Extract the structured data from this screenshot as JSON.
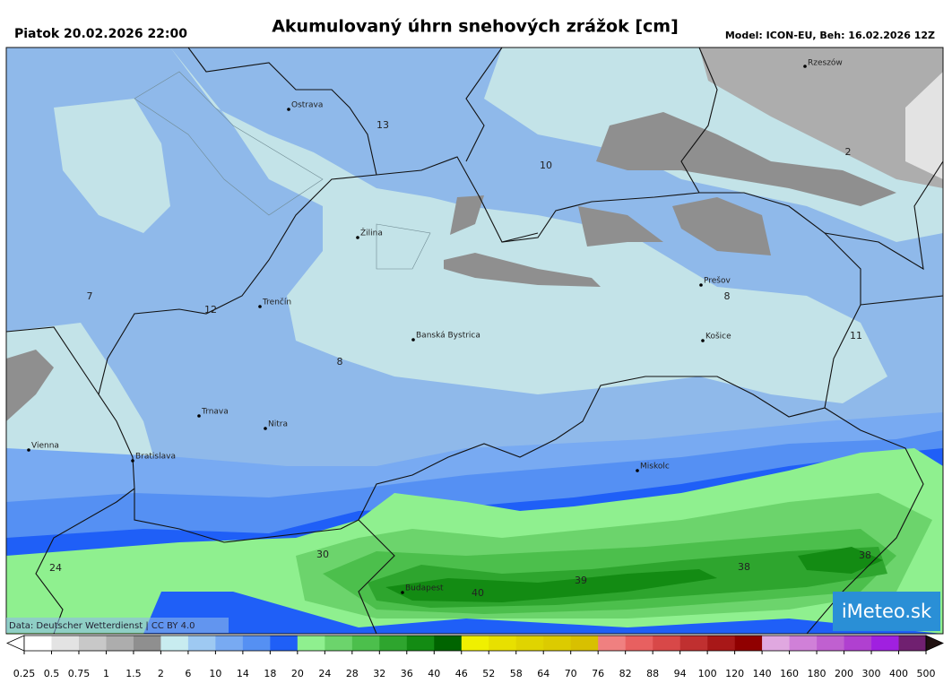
{
  "header": {
    "left": "Piatok 20.02.2026 22:00",
    "title": "Akumulovaný úhrn snehových zrážok [cm]",
    "right": "Model: ICON-EU, Beh: 16.02.2026 12Z"
  },
  "cities": [
    "Rzeszów",
    "Ostrava",
    "Žilina",
    "Prešov",
    "Trenčín",
    "Banská Bystrica",
    "Košice",
    "Trnava",
    "Nitra",
    "Vienna",
    "Bratislava",
    "Miskolc",
    "Budapest"
  ],
  "map_values": [
    13,
    10,
    2,
    7,
    12,
    8,
    8,
    11,
    30,
    24,
    39,
    40,
    38,
    38
  ],
  "credit": "Data: Deutscher Wetterdienst | CC BY 4.0",
  "logo": "iMeteo.sk",
  "colorbar": {
    "ticks": [
      0.25,
      0.5,
      0.75,
      1,
      1.5,
      2,
      6,
      10,
      14,
      18,
      20,
      24,
      28,
      32,
      36,
      40,
      46,
      52,
      58,
      64,
      70,
      76,
      82,
      88,
      94,
      100,
      120,
      140,
      160,
      180,
      200,
      300,
      400,
      500
    ],
    "colors": [
      "#ffffff",
      "#e3e3e3",
      "#c8c8c8",
      "#adadad",
      "#8f8f8f",
      "#c8ecf0",
      "#9ec9f2",
      "#78aaf2",
      "#5590f3",
      "#1f5ff7",
      "#8ff08f",
      "#6cd46c",
      "#4cbf4c",
      "#2ea52e",
      "#138b13",
      "#006400",
      "#f0f000",
      "#e8e000",
      "#e0d400",
      "#dccb00",
      "#d8c000",
      "#f08080",
      "#e86060",
      "#d84848",
      "#c03030",
      "#a81818",
      "#900000",
      "#e0a8e0",
      "#d080d8",
      "#c060d0",
      "#b040d0",
      "#a020e0",
      "#702070",
      "#502040",
      "#201010"
    ]
  }
}
